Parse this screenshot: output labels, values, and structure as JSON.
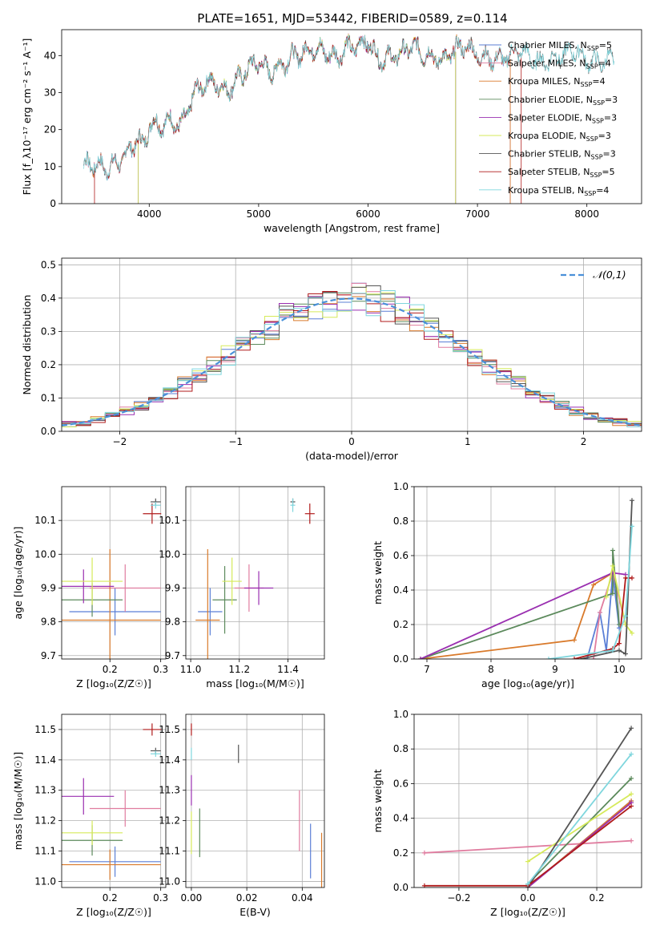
{
  "figure": {
    "title": "PLATE=1651, MJD=53442, FIBERID=0589, z=0.114"
  },
  "colors": {
    "Chabrier MILES": "#5b7fd6",
    "Salpeter MILES": "#e07c9f",
    "Kroupa MILES": "#d97a2b",
    "Chabrier ELODIE": "#5c8a5c",
    "Salpeter ELODIE": "#9a2fb0",
    "Kroupa ELODIE": "#d6ea5a",
    "Chabrier STELIB": "#555555",
    "Salpeter STELIB": "#b01b1b",
    "Kroupa STELIB": "#7fd6dd"
  },
  "chart_data": [
    {
      "id": "spectrum",
      "type": "line",
      "xlabel": "wavelength [Angstrom, rest frame]",
      "ylabel": "Flux [f_λ10⁻¹⁷ erg cm⁻² s⁻¹ A⁻¹]",
      "xlim": [
        3200,
        8500
      ],
      "ylim": [
        0,
        47
      ],
      "xticks": [
        "4000",
        "5000",
        "6000",
        "7000",
        "8000"
      ],
      "yticks": [
        "0",
        "10",
        "20",
        "30",
        "40"
      ],
      "legend_placement": "right",
      "legend": [
        "Chabrier MILES, N_SSP=5",
        "Salpeter MILES, N_SSP=4",
        "Kroupa MILES, N_SSP=4",
        "Chabrier ELODIE, N_SSP=3",
        "Salpeter ELODIE, N_SSP=3",
        "Kroupa ELODIE, N_SSP=3",
        "Chabrier STELIB, N_SSP=3",
        "Salpeter STELIB, N_SSP=5",
        "Kroupa STELIB, N_SSP=4"
      ],
      "x": [
        3400,
        3500,
        3600,
        3700,
        3800,
        3900,
        3950,
        4000,
        4100,
        4200,
        4300,
        4400,
        4500,
        4600,
        4700,
        4800,
        4900,
        5000,
        5100,
        5200,
        5300,
        5400,
        5500,
        5600,
        5700,
        5800,
        5900,
        6000,
        6100,
        6200,
        6300,
        6400,
        6500,
        6600,
        6700,
        6800,
        6900,
        7000,
        7100,
        7200,
        7300,
        7400,
        7500,
        7600,
        7700,
        7800,
        7900,
        8000,
        8100,
        8200
      ],
      "y": [
        10,
        9,
        9,
        12,
        15,
        17,
        14,
        20,
        21,
        24,
        22,
        28,
        31,
        33,
        32,
        34,
        35,
        37,
        36,
        39,
        40,
        39,
        41,
        42,
        41,
        42,
        41,
        43,
        40,
        41,
        40,
        41,
        40,
        41,
        40,
        41,
        41,
        40,
        41,
        40,
        39,
        40,
        39,
        40,
        40,
        39,
        40,
        39,
        40,
        39
      ],
      "series_ranges": [
        {
          "name": "Chabrier MILES, N_SSP=5",
          "xmin": 3400,
          "xmax": 7300
        },
        {
          "name": "Salpeter MILES, N_SSP=4",
          "xmin": 3400,
          "xmax": 7300
        },
        {
          "name": "Kroupa MILES, N_SSP=4",
          "xmin": 3400,
          "xmax": 7300
        },
        {
          "name": "Chabrier ELODIE, N_SSP=3",
          "xmin": 3900,
          "xmax": 6800
        },
        {
          "name": "Salpeter ELODIE, N_SSP=3",
          "xmin": 3900,
          "xmax": 6800
        },
        {
          "name": "Kroupa ELODIE, N_SSP=3",
          "xmin": 3900,
          "xmax": 6800
        },
        {
          "name": "Chabrier STELIB, N_SSP=3",
          "xmin": 3400,
          "xmax": 8250
        },
        {
          "name": "Salpeter STELIB, N_SSP=5",
          "xmin": 3500,
          "xmax": 7400
        },
        {
          "name": "Kroupa STELIB, N_SSP=4",
          "xmin": 3400,
          "xmax": 8250
        }
      ]
    },
    {
      "id": "residuals",
      "type": "line",
      "xlabel": "(data-model)/error",
      "ylabel": "Normed distribution",
      "xlim": [
        -2.5,
        2.5
      ],
      "ylim": [
        0,
        0.52
      ],
      "xticks": [
        "−2",
        "−1",
        "0",
        "1",
        "2"
      ],
      "yticks": [
        "0.0",
        "0.1",
        "0.2",
        "0.3",
        "0.4",
        "0.5"
      ],
      "grid": true,
      "legend_placement": "top-right",
      "legend": [
        "𝒩(0,1)"
      ],
      "bin_width": 0.125
    },
    {
      "id": "age-Z",
      "type": "scatter",
      "xlabel": "Z [log₁₀(Z/Z☉)]",
      "ylabel": "age  [log₁₀(age/yr)]",
      "xlim": [
        0.105,
        0.31
      ],
      "ylim": [
        9.69,
        10.2
      ],
      "xticks": [
        "0.2",
        "0.3"
      ],
      "yticks": [
        "9.7",
        "9.8",
        "9.9",
        "10.0",
        "10.1"
      ],
      "grid": true,
      "points": [
        {
          "name": "Chabrier MILES",
          "x": 0.21,
          "xerr": 0.09,
          "y": 9.83,
          "yerr": 0.07
        },
        {
          "name": "Salpeter MILES",
          "x": 0.23,
          "xerr": 0.07,
          "y": 9.9,
          "yerr": 0.07
        },
        {
          "name": "Kroupa MILES",
          "x": 0.2,
          "xerr": 0.1,
          "y": 9.805,
          "yerr": 0.21
        },
        {
          "name": "Chabrier ELODIE",
          "x": 0.165,
          "xerr": 0.06,
          "y": 9.865,
          "yerr": 0.05
        },
        {
          "name": "Salpeter ELODIE",
          "x": 0.148,
          "xerr": 0.06,
          "y": 9.905,
          "yerr": 0.05
        },
        {
          "name": "Kroupa ELODIE",
          "x": 0.165,
          "xerr": 0.06,
          "y": 9.92,
          "yerr": 0.07
        },
        {
          "name": "Chabrier STELIB",
          "x": 0.29,
          "xerr": 0.01,
          "y": 10.155,
          "yerr": 0.01
        },
        {
          "name": "Salpeter STELIB",
          "x": 0.283,
          "xerr": 0.018,
          "y": 10.12,
          "yerr": 0.03
        },
        {
          "name": "Kroupa STELIB",
          "x": 0.29,
          "xerr": 0.01,
          "y": 10.145,
          "yerr": 0.01
        }
      ]
    },
    {
      "id": "age-mass",
      "type": "scatter",
      "xlabel": "mass [log₁₀(M/M☉)]",
      "ylabel": "",
      "xlim": [
        10.98,
        11.55
      ],
      "ylim": [
        9.69,
        10.2
      ],
      "xticks": [
        "11.0",
        "11.2",
        "11.4"
      ],
      "yticks": [
        "9.7",
        "9.8",
        "9.9",
        "10.0",
        "10.1"
      ],
      "grid": true,
      "points": [
        {
          "name": "Chabrier MILES",
          "x": 11.08,
          "xerr": 0.05,
          "y": 9.83,
          "yerr": 0.07
        },
        {
          "name": "Salpeter MILES",
          "x": 11.24,
          "xerr": 0.06,
          "y": 9.9,
          "yerr": 0.07
        },
        {
          "name": "Kroupa MILES",
          "x": 11.07,
          "xerr": 0.05,
          "y": 9.805,
          "yerr": 0.21
        },
        {
          "name": "Chabrier ELODIE",
          "x": 11.14,
          "xerr": 0.05,
          "y": 9.865,
          "yerr": 0.1
        },
        {
          "name": "Salpeter ELODIE",
          "x": 11.28,
          "xerr": 0.06,
          "y": 9.9,
          "yerr": 0.05
        },
        {
          "name": "Kroupa ELODIE",
          "x": 11.17,
          "xerr": 0.04,
          "y": 9.92,
          "yerr": 0.07
        },
        {
          "name": "Chabrier STELIB",
          "x": 11.42,
          "xerr": 0.01,
          "y": 10.155,
          "yerr": 0.01
        },
        {
          "name": "Salpeter STELIB",
          "x": 11.49,
          "xerr": 0.02,
          "y": 10.12,
          "yerr": 0.03
        },
        {
          "name": "Kroupa STELIB",
          "x": 11.42,
          "xerr": 0.01,
          "y": 10.145,
          "yerr": 0.02
        }
      ]
    },
    {
      "id": "weight-age",
      "type": "line",
      "xlabel": "age  [log₁₀(age/yr)]",
      "ylabel": "mass weight",
      "xlim": [
        6.8,
        10.35
      ],
      "ylim": [
        0,
        1.0
      ],
      "xticks": [
        "7",
        "8",
        "9",
        "10"
      ],
      "yticks": [
        "0.0",
        "0.2",
        "0.4",
        "0.6",
        "0.8",
        "1.0"
      ],
      "grid": true,
      "series": [
        {
          "name": "Chabrier MILES",
          "x": [
            9.5,
            9.7,
            9.8,
            9.9,
            10.0
          ],
          "y": [
            0.0,
            0.27,
            0.05,
            0.5,
            0.18
          ]
        },
        {
          "name": "Salpeter MILES",
          "x": [
            9.6,
            9.7,
            9.9,
            10.1
          ],
          "y": [
            0.0,
            0.27,
            0.5,
            0.2
          ]
        },
        {
          "name": "Kroupa MILES",
          "x": [
            6.9,
            9.3,
            9.6,
            9.9
          ],
          "y": [
            0.0,
            0.11,
            0.43,
            0.5
          ]
        },
        {
          "name": "Chabrier ELODIE",
          "x": [
            6.9,
            9.9,
            9.9,
            10.0
          ],
          "y": [
            0.0,
            0.38,
            0.63,
            0.2
          ]
        },
        {
          "name": "Salpeter ELODIE",
          "x": [
            6.9,
            9.9,
            10.1
          ],
          "y": [
            0.0,
            0.5,
            0.49
          ]
        },
        {
          "name": "Kroupa ELODIE",
          "x": [
            9.8,
            9.9,
            10.1,
            10.2
          ],
          "y": [
            0.36,
            0.54,
            0.2,
            0.15
          ]
        },
        {
          "name": "Chabrier STELIB",
          "x": [
            9.4,
            10.0,
            10.1,
            10.2
          ],
          "y": [
            0.0,
            0.05,
            0.03,
            0.92
          ]
        },
        {
          "name": "Salpeter STELIB",
          "x": [
            9.3,
            9.9,
            10.0,
            10.1,
            10.2
          ],
          "y": [
            0.0,
            0.06,
            0.09,
            0.47,
            0.47
          ]
        },
        {
          "name": "Kroupa STELIB",
          "x": [
            8.9,
            9.9,
            10.1,
            10.2
          ],
          "y": [
            0.0,
            0.05,
            0.25,
            0.77
          ]
        }
      ]
    },
    {
      "id": "mass-Z",
      "type": "scatter",
      "xlabel": "Z [log₁₀(Z/Z☉)]",
      "ylabel": "mass [log₁₀(M/M☉)]",
      "xlim": [
        0.105,
        0.31
      ],
      "ylim": [
        10.98,
        11.55
      ],
      "xticks": [
        "0.2",
        "0.3"
      ],
      "yticks": [
        "11.0",
        "11.1",
        "11.2",
        "11.3",
        "11.4",
        "11.5"
      ],
      "grid": true,
      "points": [
        {
          "name": "Chabrier MILES",
          "x": 0.21,
          "xerr": 0.09,
          "y": 11.065,
          "yerr": 0.05
        },
        {
          "name": "Salpeter MILES",
          "x": 0.23,
          "xerr": 0.07,
          "y": 11.24,
          "yerr": 0.06
        },
        {
          "name": "Kroupa MILES",
          "x": 0.2,
          "xerr": 0.1,
          "y": 11.055,
          "yerr": 0.05
        },
        {
          "name": "Chabrier ELODIE",
          "x": 0.165,
          "xerr": 0.06,
          "y": 11.135,
          "yerr": 0.05
        },
        {
          "name": "Salpeter ELODIE",
          "x": 0.148,
          "xerr": 0.06,
          "y": 11.28,
          "yerr": 0.06
        },
        {
          "name": "Kroupa ELODIE",
          "x": 0.165,
          "xerr": 0.06,
          "y": 11.16,
          "yerr": 0.04
        },
        {
          "name": "Chabrier STELIB",
          "x": 0.29,
          "xerr": 0.01,
          "y": 11.43,
          "yerr": 0.01
        },
        {
          "name": "Salpeter STELIB",
          "x": 0.283,
          "xerr": 0.018,
          "y": 11.5,
          "yerr": 0.02
        },
        {
          "name": "Kroupa STELIB",
          "x": 0.29,
          "xerr": 0.01,
          "y": 11.42,
          "yerr": 0.01
        }
      ]
    },
    {
      "id": "mass-ebv",
      "type": "scatter",
      "xlabel": "E(B-V)",
      "ylabel": "",
      "xlim": [
        -0.002,
        0.048
      ],
      "ylim": [
        10.98,
        11.55
      ],
      "xticks": [
        "0.00",
        "0.02",
        "0.04"
      ],
      "yticks": [
        "11.0",
        "11.1",
        "11.2",
        "11.3",
        "11.4",
        "11.5"
      ],
      "grid": true,
      "points": [
        {
          "name": "Chabrier MILES",
          "x": 0.043,
          "y": 11.1,
          "yerr": 0.09
        },
        {
          "name": "Salpeter MILES",
          "x": 0.039,
          "y": 11.2,
          "yerr": 0.1
        },
        {
          "name": "Kroupa MILES",
          "x": 0.047,
          "y": 11.06,
          "yerr": 0.1
        },
        {
          "name": "Chabrier ELODIE",
          "x": 0.003,
          "y": 11.16,
          "yerr": 0.08
        },
        {
          "name": "Salpeter ELODIE",
          "x": 0.0,
          "y": 11.3,
          "yerr": 0.05
        },
        {
          "name": "Kroupa ELODIE",
          "x": 0.0,
          "y": 11.16,
          "yerr": 0.07
        },
        {
          "name": "Chabrier STELIB",
          "x": 0.017,
          "y": 11.42,
          "yerr": 0.03
        },
        {
          "name": "Salpeter STELIB",
          "x": 0.0,
          "y": 11.5,
          "yerr": 0.02
        },
        {
          "name": "Kroupa STELIB",
          "x": 0.0,
          "y": 11.42,
          "yerr": 0.02
        }
      ]
    },
    {
      "id": "weight-Z",
      "type": "line",
      "xlabel": "Z [log₁₀(Z/Z☉)]",
      "ylabel": "mass weight",
      "xlim": [
        -0.33,
        0.33
      ],
      "ylim": [
        0,
        1.0
      ],
      "xticks": [
        "−0.2",
        "0.0",
        "0.2"
      ],
      "yticks": [
        "0.0",
        "0.2",
        "0.4",
        "0.6",
        "0.8",
        "1.0"
      ],
      "grid": true,
      "series": [
        {
          "name": "Chabrier MILES",
          "x": [
            0.0,
            0.3
          ],
          "y": [
            0.0,
            0.5
          ]
        },
        {
          "name": "Salpeter MILES",
          "x": [
            -0.3,
            0.3
          ],
          "y": [
            0.2,
            0.27
          ]
        },
        {
          "name": "Kroupa MILES",
          "x": [
            0.0,
            0.3
          ],
          "y": [
            0.0,
            0.5
          ]
        },
        {
          "name": "Chabrier ELODIE",
          "x": [
            0.0,
            0.3
          ],
          "y": [
            0.02,
            0.63
          ]
        },
        {
          "name": "Salpeter ELODIE",
          "x": [
            0.0,
            0.3
          ],
          "y": [
            0.0,
            0.49
          ]
        },
        {
          "name": "Kroupa ELODIE",
          "x": [
            0.0,
            0.3
          ],
          "y": [
            0.15,
            0.54
          ]
        },
        {
          "name": "Chabrier STELIB",
          "x": [
            0.0,
            0.3
          ],
          "y": [
            0.0,
            0.92
          ]
        },
        {
          "name": "Salpeter STELIB",
          "x": [
            -0.3,
            0.0,
            0.3
          ],
          "y": [
            0.01,
            0.01,
            0.47
          ]
        },
        {
          "name": "Kroupa STELIB",
          "x": [
            0.0,
            0.3
          ],
          "y": [
            0.02,
            0.77
          ]
        }
      ]
    }
  ]
}
